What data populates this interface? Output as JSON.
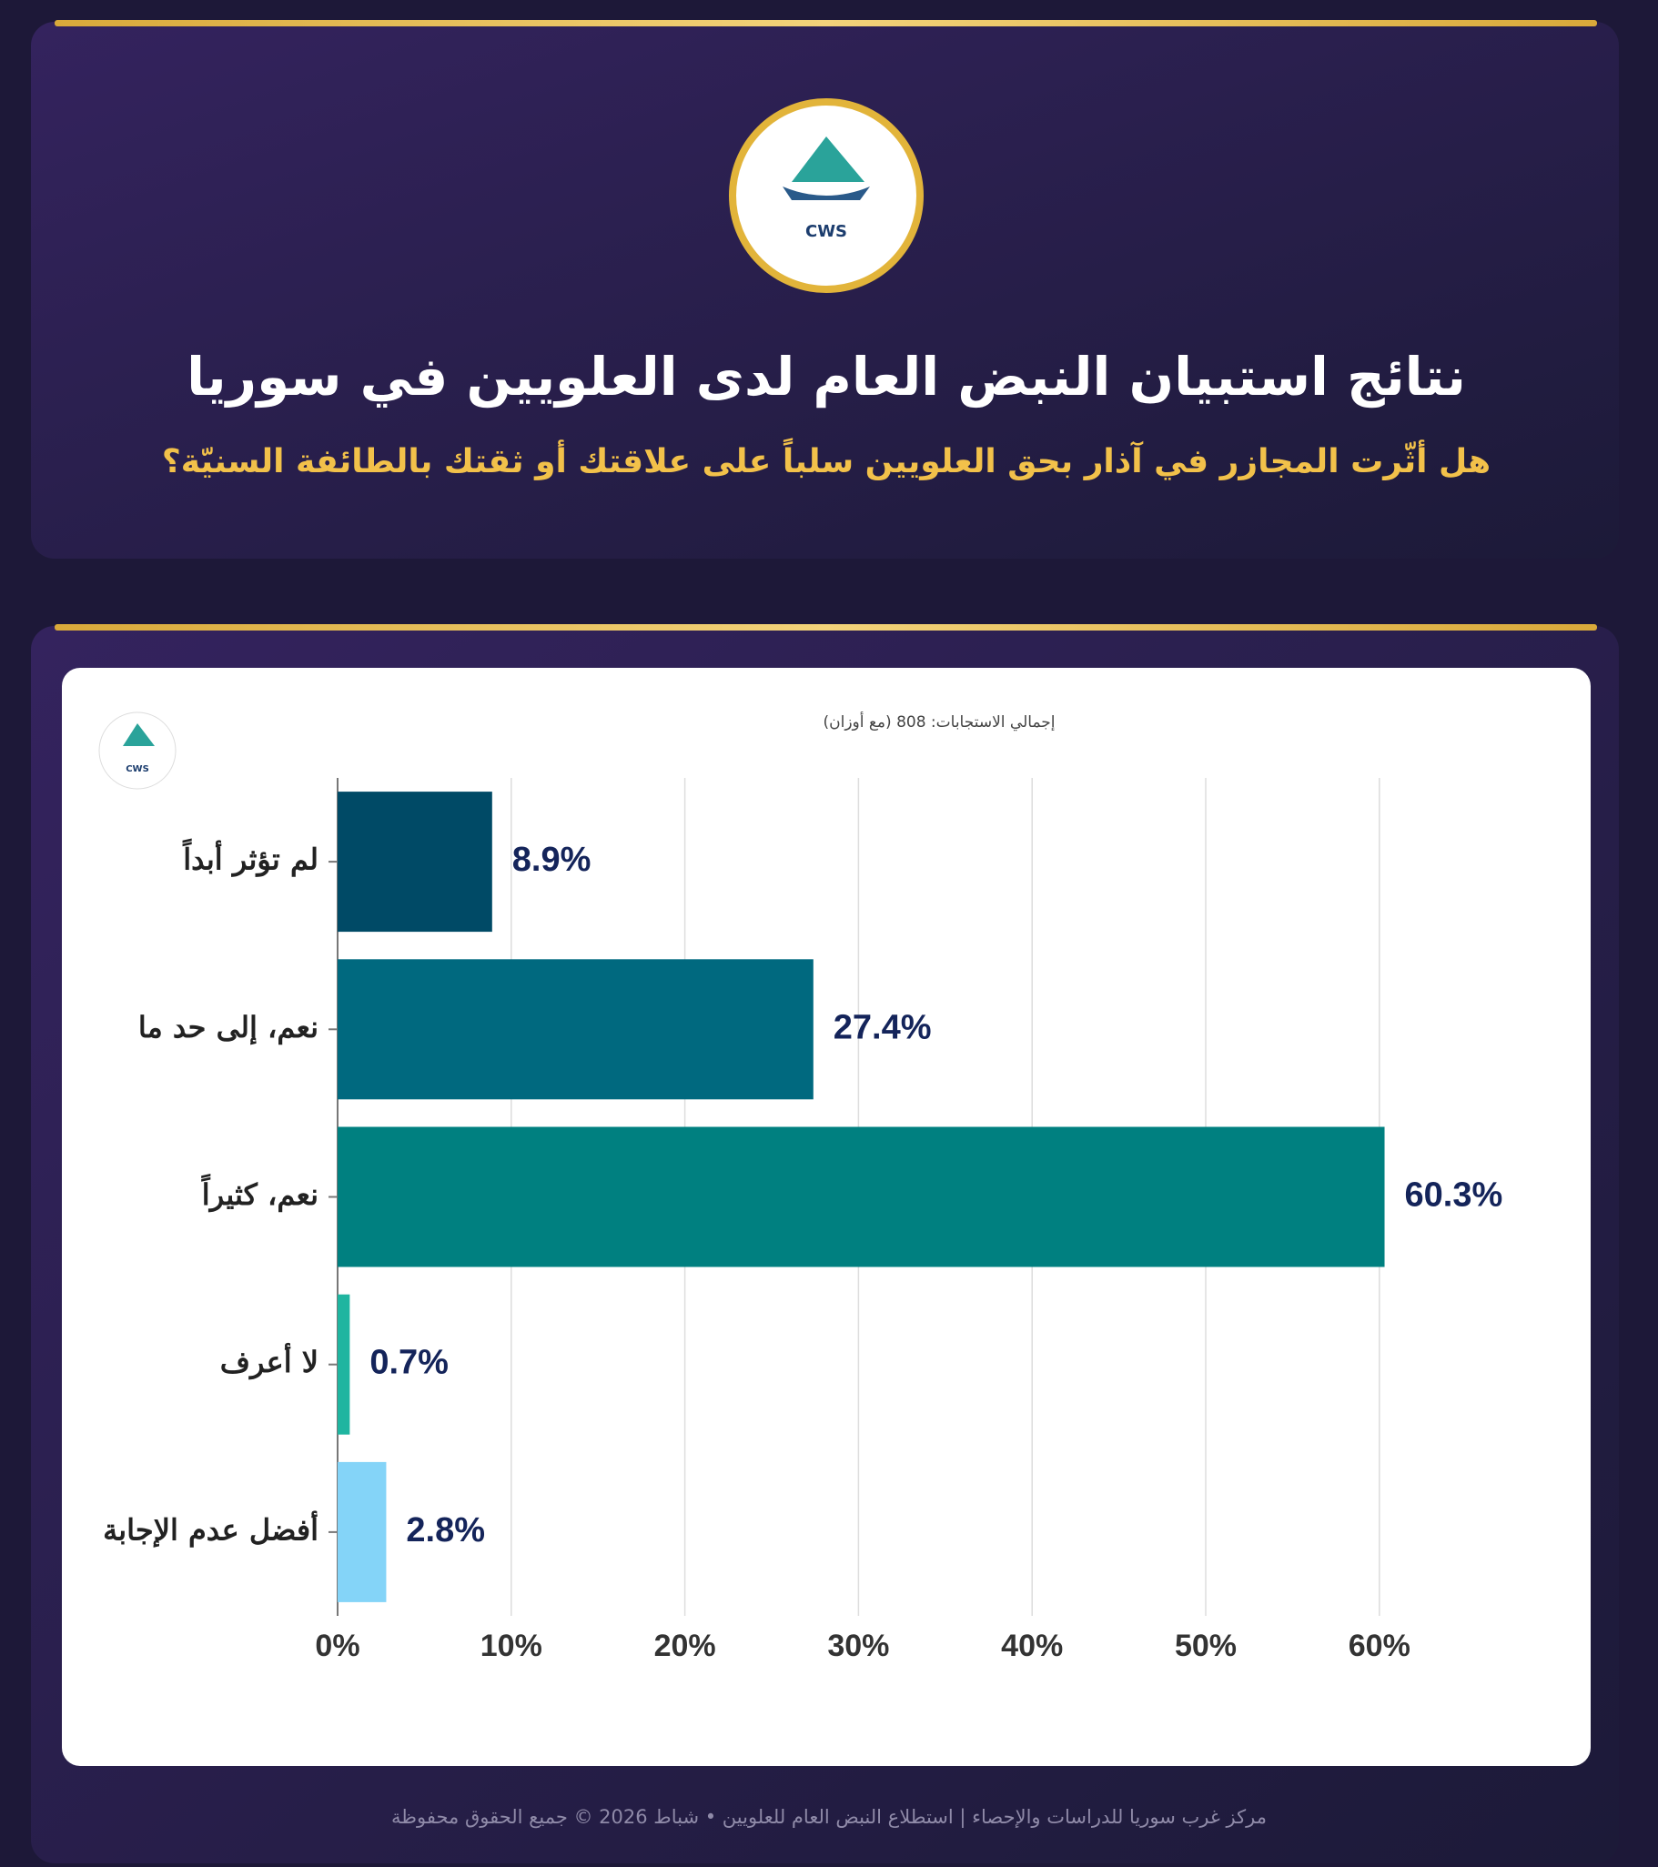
{
  "header": {
    "title": "نتائج استبيان النبض العام لدى العلويين في سوريا",
    "question": "هل أثّرت المجازر في آذار بحق العلويين سلباً على علاقتك أو ثقتك بالطائفة السنيّة؟",
    "logo_text": "CWS"
  },
  "chart_data": {
    "type": "barh",
    "subtitle": "إجمالي الاستجابات: 808 (مع أوزان)",
    "categories": [
      "لم تؤثر أبداً",
      "نعم، إلى حد ما",
      "نعم، كثيراً",
      "لا أعرف",
      "أفضل عدم الإجابة"
    ],
    "values": [
      8.9,
      27.4,
      60.3,
      0.7,
      2.8
    ],
    "value_labels": [
      "8.9%",
      "27.4%",
      "60.3%",
      "0.7%",
      "2.8%"
    ],
    "colors": [
      "#004a66",
      "#00697f",
      "#008080",
      "#1fb5a0",
      "#84d4f8"
    ],
    "xlim": [
      0,
      65
    ],
    "xticks": [
      {
        "value": 0,
        "label": "0%"
      },
      {
        "value": 10,
        "label": "10%"
      },
      {
        "value": 20,
        "label": "20%"
      },
      {
        "value": 30,
        "label": "30%"
      },
      {
        "value": 40,
        "label": "40%"
      },
      {
        "value": 50,
        "label": "50%"
      },
      {
        "value": 60,
        "label": "60%"
      }
    ],
    "grid": true
  },
  "footer": "مركز غرب سوريا للدراسات والإحصاء | استطلاع النبض العام للعلويين • شباط 2026 © جميع الحقوق محفوظة"
}
